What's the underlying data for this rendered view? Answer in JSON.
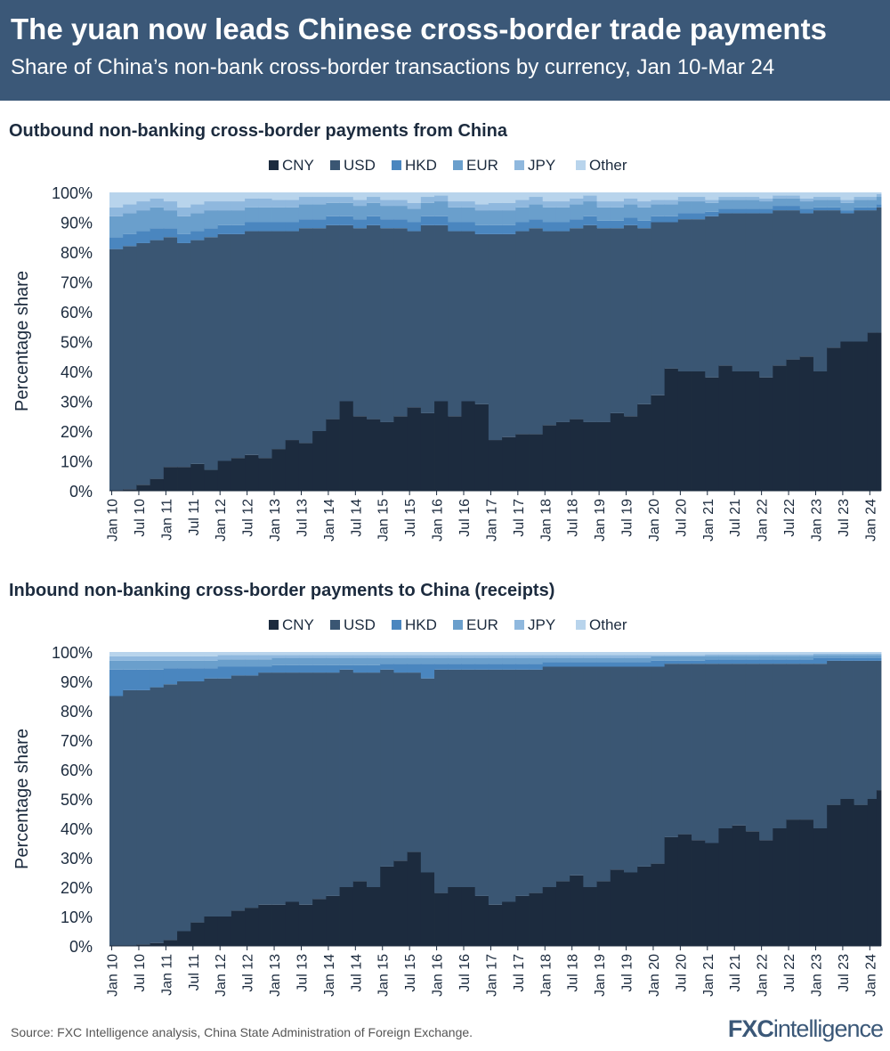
{
  "header": {
    "title": "The yuan now leads Chinese cross-border trade payments",
    "subtitle": "Share of China’s non-bank cross-border transactions by currency, Jan 10-Mar 24"
  },
  "footer": {
    "source": "Source: FXC Intelligence analysis, China State Administration of Foreign Exchange.",
    "logo_text": "FXCintelligence"
  },
  "colors": {
    "CNY": "#1c2b3e",
    "USD": "#3a5673",
    "HKD": "#4a86bf",
    "EUR": "#6a9fcc",
    "JPY": "#8fb8de",
    "Other": "#b8d4ec"
  },
  "chart_data": [
    {
      "type": "area",
      "stacked": true,
      "title": "Outbound non-banking cross-border payments from China",
      "ylabel": "Percentage share",
      "ylim": [
        0,
        100
      ],
      "yticks": [
        "0%",
        "10%",
        "20%",
        "30%",
        "40%",
        "50%",
        "60%",
        "70%",
        "80%",
        "90%",
        "100%"
      ],
      "xticks": [
        "Jan 10",
        "Jul 10",
        "Jan 11",
        "Jul 11",
        "Jan 12",
        "Jul 12",
        "Jan 13",
        "Jul 13",
        "Jan 14",
        "Jul 14",
        "Jan 15",
        "Jul 15",
        "Jan 16",
        "Jul 16",
        "Jan 17",
        "Jul 17",
        "Jan 18",
        "Jul 18",
        "Jan 19",
        "Jul 19",
        "Jan 20",
        "Jul 20",
        "Jan 21",
        "Jul 21",
        "Jan 22",
        "Jul 22",
        "Jan 23",
        "Jul 23",
        "Jan 24"
      ],
      "legend": "top-center",
      "x": [
        "2010-01",
        "2010-04",
        "2010-07",
        "2010-10",
        "2011-01",
        "2011-04",
        "2011-07",
        "2011-10",
        "2012-01",
        "2012-04",
        "2012-07",
        "2012-10",
        "2013-01",
        "2013-04",
        "2013-07",
        "2013-10",
        "2014-01",
        "2014-04",
        "2014-07",
        "2014-10",
        "2015-01",
        "2015-04",
        "2015-07",
        "2015-10",
        "2016-01",
        "2016-04",
        "2016-07",
        "2016-10",
        "2017-01",
        "2017-04",
        "2017-07",
        "2017-10",
        "2018-01",
        "2018-04",
        "2018-07",
        "2018-10",
        "2019-01",
        "2019-04",
        "2019-07",
        "2019-10",
        "2020-01",
        "2020-04",
        "2020-07",
        "2020-10",
        "2021-01",
        "2021-04",
        "2021-07",
        "2021-10",
        "2022-01",
        "2022-04",
        "2022-07",
        "2022-10",
        "2023-01",
        "2023-04",
        "2023-07",
        "2023-10",
        "2024-01",
        "2024-03"
      ],
      "series": [
        {
          "name": "CNY",
          "values": [
            0,
            0.5,
            2,
            4,
            8,
            8,
            9,
            7,
            10,
            11,
            12,
            11,
            14,
            17,
            16,
            20,
            24,
            30,
            25,
            24,
            23,
            25,
            28,
            26,
            30,
            25,
            30,
            29,
            17,
            18,
            19,
            19,
            22,
            23,
            24,
            23,
            23,
            26,
            25,
            29,
            32,
            41,
            40,
            40,
            38,
            42,
            40,
            40,
            38,
            42,
            44,
            45,
            40,
            48,
            50,
            50,
            53,
            53
          ]
        },
        {
          "name": "USD",
          "values": [
            81,
            81.5,
            81,
            80,
            77,
            75,
            75,
            78,
            76,
            75,
            75,
            76,
            73,
            70,
            72,
            68,
            65,
            59,
            63,
            65,
            65,
            63,
            59,
            63,
            59,
            62,
            57,
            57,
            69,
            68,
            68,
            69,
            65,
            64,
            64,
            66,
            65,
            62,
            64,
            59,
            58,
            49,
            51,
            51,
            54,
            51,
            53,
            53,
            55,
            52,
            50,
            48,
            54,
            46,
            43,
            44,
            41,
            42
          ]
        },
        {
          "name": "HKD",
          "values": [
            4,
            4,
            4,
            4,
            3,
            3,
            3,
            3,
            3,
            3,
            3,
            3,
            3,
            3,
            3,
            3,
            3,
            3,
            3,
            3,
            3,
            3,
            3,
            3,
            3,
            3,
            3,
            3,
            3,
            3,
            3,
            3,
            3,
            3,
            3,
            3,
            2.5,
            2.5,
            2.5,
            2.5,
            2,
            2,
            2,
            2,
            1.5,
            1.5,
            1.5,
            1.5,
            1.5,
            1.5,
            1.5,
            1.5,
            1,
            1,
            1,
            1,
            1,
            1
          ]
        },
        {
          "name": "EUR",
          "values": [
            7,
            7,
            7,
            7,
            6,
            6,
            6,
            6,
            5,
            5,
            5,
            5,
            5,
            5,
            5,
            5,
            4.5,
            4.5,
            4.5,
            4.5,
            4.5,
            4.5,
            4.5,
            4.5,
            5,
            5,
            5,
            5,
            5,
            5,
            5,
            5,
            5,
            5,
            5,
            5,
            4.5,
            4.5,
            4.5,
            4.5,
            4,
            4,
            4,
            4,
            3,
            3,
            3,
            3,
            2.5,
            2.5,
            2.5,
            2.5,
            2.5,
            2.5,
            2.5,
            2.5,
            2.5,
            2.5
          ]
        },
        {
          "name": "JPY",
          "values": [
            3,
            3,
            3,
            3,
            3,
            3,
            3,
            3,
            3,
            3,
            3,
            3,
            2.5,
            2.5,
            2.5,
            2.5,
            2,
            2,
            2,
            2,
            2,
            2,
            2,
            2,
            2,
            2,
            2,
            2,
            2.5,
            2.5,
            2.5,
            2.5,
            2,
            2,
            2,
            2,
            2,
            2,
            2,
            2,
            1.5,
            1.5,
            1.5,
            1.5,
            1,
            1,
            1,
            1,
            1,
            1,
            1,
            1,
            1,
            1,
            1,
            1,
            1,
            1
          ]
        },
        {
          "name": "Other",
          "values": [
            5,
            4,
            3,
            2,
            3,
            5,
            4,
            3,
            3,
            3,
            2,
            2,
            2.5,
            2.5,
            1.5,
            1.5,
            1.5,
            1.5,
            2.5,
            1.5,
            2.5,
            2.5,
            3.5,
            1.5,
            1,
            3,
            3,
            4,
            3.5,
            3.5,
            2.5,
            1.5,
            3,
            3,
            2,
            1,
            3,
            3,
            2,
            3,
            2.5,
            2.5,
            1.5,
            1.5,
            2.5,
            1.5,
            1.5,
            1.5,
            2,
            1,
            1,
            2,
            1.5,
            1.5,
            2.5,
            1.5,
            1.5,
            0.5
          ]
        }
      ]
    },
    {
      "type": "area",
      "stacked": true,
      "title": "Inbound non-banking cross-border payments to China (receipts)",
      "ylabel": "Percentage share",
      "ylim": [
        0,
        100
      ],
      "yticks": [
        "0%",
        "10%",
        "20%",
        "30%",
        "40%",
        "50%",
        "60%",
        "70%",
        "80%",
        "90%",
        "100%"
      ],
      "xticks": [
        "Jan 10",
        "Jul 10",
        "Jan 11",
        "Jul 11",
        "Jan 12",
        "Jul 12",
        "Jan 13",
        "Jul 13",
        "Jan 14",
        "Jul 14",
        "Jan 15",
        "Jul 15",
        "Jan 16",
        "Jul 16",
        "Jan 17",
        "Jul 17",
        "Jan 18",
        "Jul 18",
        "Jan 19",
        "Jul 19",
        "Jan 20",
        "Jul 20",
        "Jan 21",
        "Jul 21",
        "Jan 22",
        "Jul 22",
        "Jan 23",
        "Jul 23",
        "Jan 24"
      ],
      "legend": "top-center",
      "x": [
        "2010-01",
        "2010-04",
        "2010-07",
        "2010-10",
        "2011-01",
        "2011-04",
        "2011-07",
        "2011-10",
        "2012-01",
        "2012-04",
        "2012-07",
        "2012-10",
        "2013-01",
        "2013-04",
        "2013-07",
        "2013-10",
        "2014-01",
        "2014-04",
        "2014-07",
        "2014-10",
        "2015-01",
        "2015-04",
        "2015-07",
        "2015-10",
        "2016-01",
        "2016-04",
        "2016-07",
        "2016-10",
        "2017-01",
        "2017-04",
        "2017-07",
        "2017-10",
        "2018-01",
        "2018-04",
        "2018-07",
        "2018-10",
        "2019-01",
        "2019-04",
        "2019-07",
        "2019-10",
        "2020-01",
        "2020-04",
        "2020-07",
        "2020-10",
        "2021-01",
        "2021-04",
        "2021-07",
        "2021-10",
        "2022-01",
        "2022-04",
        "2022-07",
        "2022-10",
        "2023-01",
        "2023-04",
        "2023-07",
        "2023-10",
        "2024-01",
        "2024-03"
      ],
      "series": [
        {
          "name": "CNY",
          "values": [
            0,
            0,
            0.5,
            1,
            2,
            5,
            8,
            10,
            10,
            12,
            13,
            14,
            14,
            15,
            14,
            16,
            17,
            20,
            22,
            20,
            27,
            29,
            32,
            25,
            18,
            20,
            20,
            17,
            14,
            15,
            17,
            18,
            20,
            22,
            24,
            20,
            22,
            26,
            25,
            27,
            28,
            37,
            38,
            36,
            35,
            40,
            41,
            39,
            36,
            40,
            43,
            43,
            40,
            48,
            50,
            48,
            50,
            53
          ]
        },
        {
          "name": "USD",
          "values": [
            85,
            87,
            86.5,
            87,
            87,
            85,
            82,
            81,
            81,
            80,
            79,
            79,
            79,
            78,
            79,
            77,
            76,
            74,
            71,
            73,
            67,
            64,
            61,
            66,
            76,
            74,
            74,
            77,
            80,
            79,
            77,
            76,
            75,
            73,
            71,
            75,
            73,
            69,
            70,
            68,
            67,
            59,
            58,
            60,
            61,
            56,
            55,
            57,
            60,
            56,
            53,
            53,
            56,
            49,
            47,
            49,
            47,
            44
          ]
        },
        {
          "name": "HKD",
          "values": [
            9,
            7,
            7,
            6,
            5.5,
            4.5,
            4.5,
            3.5,
            4,
            3,
            3,
            2,
            2.5,
            2.5,
            2.5,
            2.5,
            2.5,
            1.5,
            2.5,
            2.5,
            2,
            3,
            3,
            5,
            2,
            2,
            2,
            2,
            2,
            2,
            2,
            2,
            1.5,
            1.5,
            1.5,
            1.5,
            1.5,
            1.5,
            1.5,
            1.5,
            2,
            1,
            1,
            1,
            1.5,
            1.5,
            1.5,
            1.5,
            1.5,
            1.5,
            1.5,
            1.5,
            2,
            1,
            1,
            1,
            1,
            1
          ]
        },
        {
          "name": "EUR",
          "values": [
            3,
            3,
            3,
            3,
            2.5,
            2.5,
            2.5,
            2.5,
            2.5,
            2.5,
            2.5,
            2.5,
            2.5,
            2.5,
            2.5,
            2.5,
            2.5,
            2.5,
            2.5,
            2.5,
            2,
            2,
            2,
            2,
            2,
            2,
            2,
            2,
            2,
            2,
            2,
            2,
            1.5,
            1.5,
            1.5,
            1.5,
            1.5,
            1.5,
            1.5,
            1.5,
            1.5,
            1.5,
            1.5,
            1.5,
            1.2,
            1.2,
            1.2,
            1.2,
            1.2,
            1.2,
            1.2,
            1.2,
            1,
            1,
            1,
            1,
            1,
            1
          ]
        },
        {
          "name": "JPY",
          "values": [
            1.5,
            1.5,
            1.5,
            1.5,
            1.5,
            1.5,
            1.5,
            1.5,
            1.5,
            1.5,
            1.5,
            1.5,
            1,
            1,
            1,
            1,
            1,
            1,
            1,
            1,
            1,
            1,
            1,
            1,
            1,
            1,
            1,
            1,
            1,
            1,
            1,
            1,
            1,
            1,
            1,
            1,
            1,
            1,
            1,
            1,
            0.5,
            0.5,
            0.5,
            0.5,
            0.5,
            0.5,
            0.5,
            0.5,
            0.5,
            0.5,
            0.5,
            0.5,
            0.4,
            0.4,
            0.4,
            0.4,
            0.4,
            0.4
          ]
        },
        {
          "name": "Other",
          "values": [
            1.5,
            1.5,
            1.5,
            1.5,
            1.5,
            1.5,
            1.5,
            1.5,
            1,
            1,
            1,
            1,
            1,
            1,
            1,
            1,
            1,
            1,
            1,
            1,
            1,
            1,
            1,
            1,
            1,
            1,
            1,
            1,
            1,
            1,
            1,
            1,
            1,
            1,
            1,
            1,
            1,
            1,
            1,
            1,
            1,
            1,
            1,
            1,
            0.8,
            0.8,
            0.8,
            0.8,
            0.8,
            0.8,
            0.8,
            0.8,
            0.6,
            0.6,
            0.6,
            0.6,
            0.6,
            0.6
          ]
        }
      ]
    }
  ]
}
